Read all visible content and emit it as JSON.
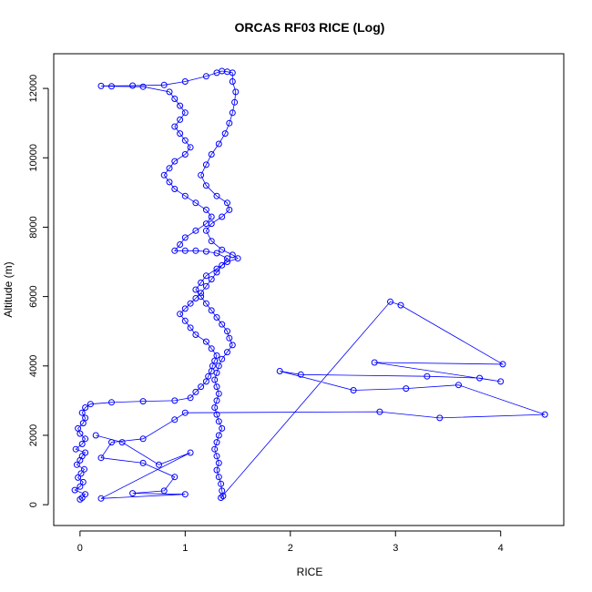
{
  "chart_data": {
    "type": "scatter",
    "title": "ORCAS RF03 RICE (Log)",
    "xlabel": "RICE",
    "ylabel": "Altitude (m)",
    "xlim": [
      -0.25,
      4.6
    ],
    "ylim": [
      -600,
      13000
    ],
    "xticks": [
      0,
      1,
      2,
      3,
      4
    ],
    "yticks": [
      0,
      2000,
      4000,
      6000,
      8000,
      10000,
      12000
    ],
    "grid": false,
    "legend": "none",
    "colors": {
      "series": "#0000ff",
      "axis": "#000000"
    },
    "series": [
      {
        "style": "points-and-lines",
        "points": [
          [
            0.0,
            150
          ],
          [
            0.02,
            200
          ],
          [
            0.05,
            300
          ],
          [
            -0.05,
            420
          ],
          [
            0.0,
            520
          ],
          [
            0.03,
            650
          ],
          [
            -0.02,
            780
          ],
          [
            0.01,
            900
          ],
          [
            0.04,
            1020
          ],
          [
            -0.03,
            1150
          ],
          [
            0.0,
            1280
          ],
          [
            0.02,
            1400
          ],
          [
            0.05,
            1500
          ],
          [
            -0.04,
            1600
          ],
          [
            0.02,
            1750
          ],
          [
            0.05,
            1900
          ],
          [
            0.0,
            2050
          ],
          [
            -0.02,
            2200
          ],
          [
            0.03,
            2350
          ],
          [
            0.05,
            2500
          ],
          [
            0.02,
            2650
          ],
          [
            0.05,
            2800
          ],
          [
            0.1,
            2900
          ],
          [
            0.3,
            2950
          ],
          [
            0.6,
            2980
          ],
          [
            0.9,
            3000
          ],
          [
            1.05,
            3080
          ],
          [
            1.1,
            3250
          ],
          [
            1.15,
            3400
          ],
          [
            1.2,
            3550
          ],
          [
            1.22,
            3700
          ],
          [
            1.25,
            3850
          ],
          [
            1.26,
            4000
          ],
          [
            1.28,
            4150
          ],
          [
            1.3,
            4300
          ],
          [
            1.25,
            4500
          ],
          [
            1.2,
            4700
          ],
          [
            1.1,
            4900
          ],
          [
            1.05,
            5100
          ],
          [
            1.0,
            5300
          ],
          [
            0.95,
            5500
          ],
          [
            1.0,
            5650
          ],
          [
            1.05,
            5800
          ],
          [
            1.1,
            5950
          ],
          [
            1.15,
            6100
          ],
          [
            1.2,
            6300
          ],
          [
            1.25,
            6500
          ],
          [
            1.3,
            6700
          ],
          [
            1.35,
            6900
          ],
          [
            1.4,
            7100
          ],
          [
            1.3,
            7250
          ],
          [
            1.2,
            7300
          ],
          [
            1.1,
            7320
          ],
          [
            1.0,
            7320
          ],
          [
            0.9,
            7320
          ],
          [
            0.95,
            7500
          ],
          [
            1.0,
            7700
          ],
          [
            1.1,
            7900
          ],
          [
            1.2,
            8100
          ],
          [
            1.25,
            8300
          ],
          [
            1.2,
            8500
          ],
          [
            1.1,
            8700
          ],
          [
            1.0,
            8900
          ],
          [
            0.9,
            9100
          ],
          [
            0.85,
            9300
          ],
          [
            0.8,
            9500
          ],
          [
            0.85,
            9700
          ],
          [
            0.9,
            9900
          ],
          [
            1.0,
            10100
          ],
          [
            1.05,
            10300
          ],
          [
            1.0,
            10500
          ],
          [
            0.95,
            10700
          ],
          [
            0.9,
            10900
          ],
          [
            0.95,
            11100
          ],
          [
            1.0,
            11300
          ],
          [
            0.95,
            11500
          ],
          [
            0.9,
            11700
          ],
          [
            0.85,
            11900
          ],
          [
            0.6,
            12050
          ],
          [
            0.3,
            12060
          ],
          [
            0.2,
            12070
          ],
          [
            0.5,
            12080
          ],
          [
            0.8,
            12100
          ],
          [
            1.0,
            12200
          ],
          [
            1.2,
            12350
          ],
          [
            1.3,
            12450
          ],
          [
            1.35,
            12500
          ],
          [
            1.4,
            12480
          ],
          [
            1.45,
            12450
          ],
          [
            1.45,
            12200
          ],
          [
            1.48,
            11900
          ],
          [
            1.47,
            11600
          ],
          [
            1.45,
            11300
          ],
          [
            1.42,
            11000
          ],
          [
            1.38,
            10700
          ],
          [
            1.32,
            10400
          ],
          [
            1.25,
            10100
          ],
          [
            1.2,
            9800
          ],
          [
            1.15,
            9500
          ],
          [
            1.2,
            9200
          ],
          [
            1.3,
            8900
          ],
          [
            1.4,
            8700
          ],
          [
            1.42,
            8500
          ],
          [
            1.35,
            8300
          ],
          [
            1.25,
            8100
          ],
          [
            1.2,
            7900
          ],
          [
            1.25,
            7600
          ],
          [
            1.35,
            7350
          ],
          [
            1.45,
            7200
          ],
          [
            1.5,
            7100
          ],
          [
            1.4,
            7000
          ],
          [
            1.3,
            6800
          ],
          [
            1.2,
            6600
          ],
          [
            1.15,
            6400
          ],
          [
            1.1,
            6200
          ],
          [
            1.15,
            6000
          ],
          [
            1.2,
            5800
          ],
          [
            1.25,
            5600
          ],
          [
            1.3,
            5400
          ],
          [
            1.35,
            5200
          ],
          [
            1.4,
            5000
          ],
          [
            1.42,
            4800
          ],
          [
            1.45,
            4600
          ],
          [
            1.4,
            4400
          ],
          [
            1.35,
            4200
          ],
          [
            1.32,
            4000
          ],
          [
            1.3,
            3800
          ],
          [
            1.28,
            3600
          ],
          [
            1.3,
            3400
          ],
          [
            1.32,
            3200
          ],
          [
            1.3,
            3000
          ],
          [
            1.28,
            2800
          ],
          [
            1.3,
            2600
          ],
          [
            1.32,
            2400
          ],
          [
            1.35,
            2200
          ],
          [
            1.32,
            2000
          ],
          [
            1.3,
            1800
          ],
          [
            1.28,
            1600
          ],
          [
            1.3,
            1400
          ],
          [
            1.32,
            1200
          ],
          [
            1.3,
            1000
          ],
          [
            1.32,
            800
          ],
          [
            1.34,
            600
          ],
          [
            1.35,
            400
          ],
          [
            1.36,
            250
          ],
          [
            1.34,
            200
          ],
          [
            2.95,
            5850
          ],
          [
            3.05,
            5750
          ],
          [
            4.02,
            4050
          ],
          [
            2.8,
            4100
          ],
          [
            4.0,
            3550
          ],
          [
            3.8,
            3650
          ],
          [
            3.3,
            3700
          ],
          [
            2.1,
            3750
          ],
          [
            1.9,
            3850
          ],
          [
            2.6,
            3300
          ],
          [
            3.1,
            3350
          ],
          [
            3.6,
            3450
          ],
          [
            4.42,
            2600
          ],
          [
            3.42,
            2500
          ],
          [
            2.85,
            2680
          ],
          [
            1.0,
            2650
          ],
          [
            0.9,
            2450
          ],
          [
            0.6,
            1900
          ],
          [
            0.3,
            1800
          ],
          [
            0.2,
            1350
          ],
          [
            0.6,
            1200
          ],
          [
            0.9,
            800
          ],
          [
            0.8,
            400
          ],
          [
            0.5,
            330
          ],
          [
            1.0,
            300
          ],
          [
            0.2,
            180
          ],
          [
            1.05,
            1500
          ],
          [
            0.75,
            1150
          ],
          [
            0.4,
            1800
          ],
          [
            0.15,
            2000
          ]
        ]
      }
    ]
  }
}
